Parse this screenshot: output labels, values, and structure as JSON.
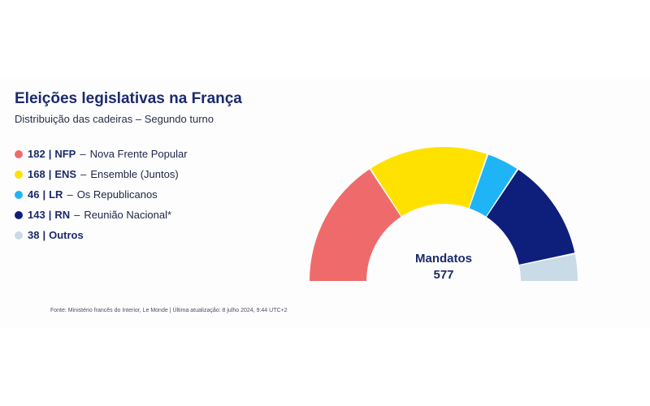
{
  "chart_data": {
    "type": "pie",
    "subtype": "semicircle-parliament",
    "title": "Eleições legislativas na França",
    "subtitle": "Distribuição das cadeiras – Segundo turno",
    "center_label": "Mandatos",
    "total": "577",
    "series": [
      {
        "value": 182,
        "abbr": "NFP",
        "name": "Nova Frente Popular",
        "color": "#ef6b6b"
      },
      {
        "value": 168,
        "abbr": "ENS",
        "name": "Ensemble (Juntos)",
        "color": "#ffe100"
      },
      {
        "value": 46,
        "abbr": "LR",
        "name": "Os Republicanos",
        "color": "#1fb4f5"
      },
      {
        "value": 143,
        "abbr": "RN",
        "name": "Reunião Nacional*",
        "color": "#0d1f7a"
      },
      {
        "value": 38,
        "abbr": "Outros",
        "name": "",
        "color": "#c9dbe6"
      }
    ],
    "source": "Fonte: Ministério francês do Interior, Le Monde | Última atualização: 8 julho 2024, 9:44 UTC+2"
  }
}
